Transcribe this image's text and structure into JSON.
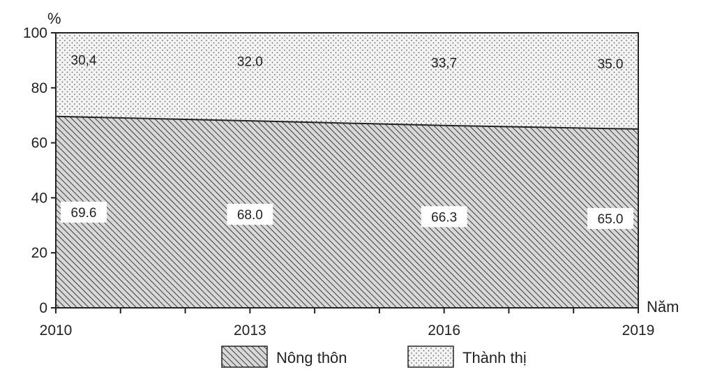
{
  "chart_data": {
    "type": "area",
    "stacked": true,
    "percent_stacked": true,
    "x": [
      "2010",
      "2013",
      "2016",
      "2019"
    ],
    "series": [
      {
        "name": "Nông thôn",
        "values": [
          69.6,
          68.0,
          66.3,
          65.0
        ],
        "labels": [
          "69.6",
          "68.0",
          "66.3",
          "65.0"
        ],
        "pattern": "diagonal-hatch"
      },
      {
        "name": "Thành thị",
        "values": [
          30.4,
          32.0,
          33.7,
          35.0
        ],
        "labels": [
          "30,4",
          "32.0",
          "33,7",
          "35.0"
        ],
        "pattern": "dots"
      }
    ],
    "ylabel": "%",
    "xlabel": "Năm",
    "ylim": [
      0,
      100
    ],
    "yticks": [
      0,
      20,
      40,
      60,
      80,
      100
    ],
    "legend_position": "bottom",
    "grid": false
  }
}
